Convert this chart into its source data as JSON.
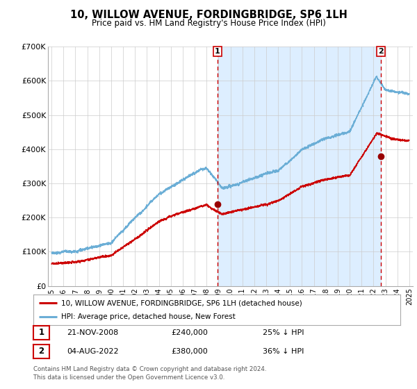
{
  "title": "10, WILLOW AVENUE, FORDINGBRIDGE, SP6 1LH",
  "subtitle": "Price paid vs. HM Land Registry's House Price Index (HPI)",
  "legend_line1": "10, WILLOW AVENUE, FORDINGBRIDGE, SP6 1LH (detached house)",
  "legend_line2": "HPI: Average price, detached house, New Forest",
  "annotation1_date": "21-NOV-2008",
  "annotation1_price": "£240,000",
  "annotation1_pct": "25% ↓ HPI",
  "annotation2_date": "04-AUG-2022",
  "annotation2_price": "£380,000",
  "annotation2_pct": "36% ↓ HPI",
  "footnote1": "Contains HM Land Registry data © Crown copyright and database right 2024.",
  "footnote2": "This data is licensed under the Open Government Licence v3.0.",
  "sale1_x": 2008.9,
  "sale1_y": 240000,
  "sale2_x": 2022.6,
  "sale2_y": 380000,
  "hpi_color": "#6baed6",
  "hpi_fill_color": "#ddeeff",
  "price_color": "#cc0000",
  "sale_marker_color": "#990000",
  "vline_color": "#cc0000",
  "bg_color": "#ffffff",
  "grid_color": "#cccccc",
  "ylim": [
    0,
    700000
  ],
  "xlim_left": 1994.7,
  "xlim_right": 2025.3
}
